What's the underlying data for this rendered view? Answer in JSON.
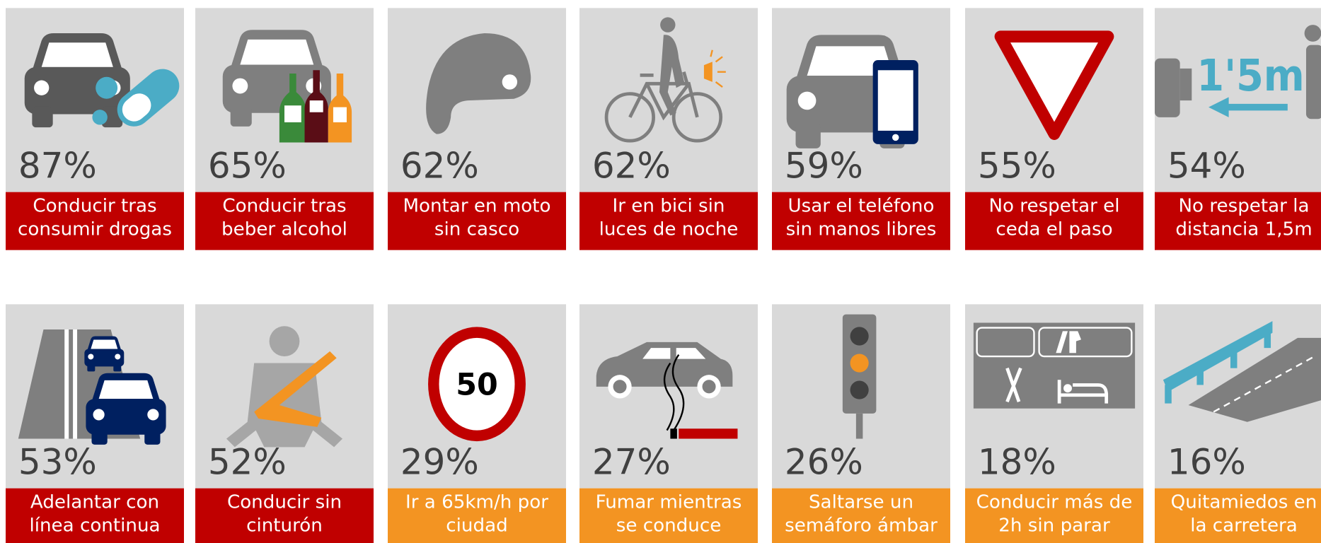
{
  "cards": [
    {
      "value": "87%",
      "label": [
        "Conducir tras",
        "consumir drogas"
      ],
      "color": "#c00000"
    },
    {
      "value": "65%",
      "label": [
        "Conducir tras",
        "beber alcohol"
      ],
      "color": "#c00000"
    },
    {
      "value": "62%",
      "label": [
        "Montar en moto",
        "sin casco"
      ],
      "color": "#c00000"
    },
    {
      "value": "62%",
      "label": [
        "Ir en bici sin",
        "luces de noche"
      ],
      "color": "#c00000"
    },
    {
      "value": "59%",
      "label": [
        "Usar el teléfono",
        "sin manos libres"
      ],
      "color": "#c00000"
    },
    {
      "value": "55%",
      "label": [
        "No respetar  el",
        "ceda el paso"
      ],
      "color": "#c00000"
    },
    {
      "value": "54%",
      "label": [
        "No respetar la",
        "distancia 1,5m"
      ],
      "color": "#c00000",
      "icon_text": "1'5m"
    },
    {
      "value": "53%",
      "label": [
        "Adelantar con",
        "línea continua"
      ],
      "color": "#c00000"
    },
    {
      "value": "52%",
      "label": [
        "Conducir sin",
        "cinturón"
      ],
      "color": "#c00000"
    },
    {
      "value": "29%",
      "label": [
        "Ir a 65km/h por",
        "ciudad"
      ],
      "color": "#f39422",
      "icon_text": "50"
    },
    {
      "value": "27%",
      "label": [
        "Fumar mientras",
        "se conduce"
      ],
      "color": "#f39422"
    },
    {
      "value": "26%",
      "label": [
        "Saltarse un",
        "semáforo ámbar"
      ],
      "color": "#f39422"
    },
    {
      "value": "18%",
      "label": [
        "Conducir más de",
        "2h sin parar"
      ],
      "color": "#f39422"
    },
    {
      "value": "16%",
      "label": [
        "Quitamiedos en",
        "la carretera"
      ],
      "color": "#f39422"
    }
  ]
}
